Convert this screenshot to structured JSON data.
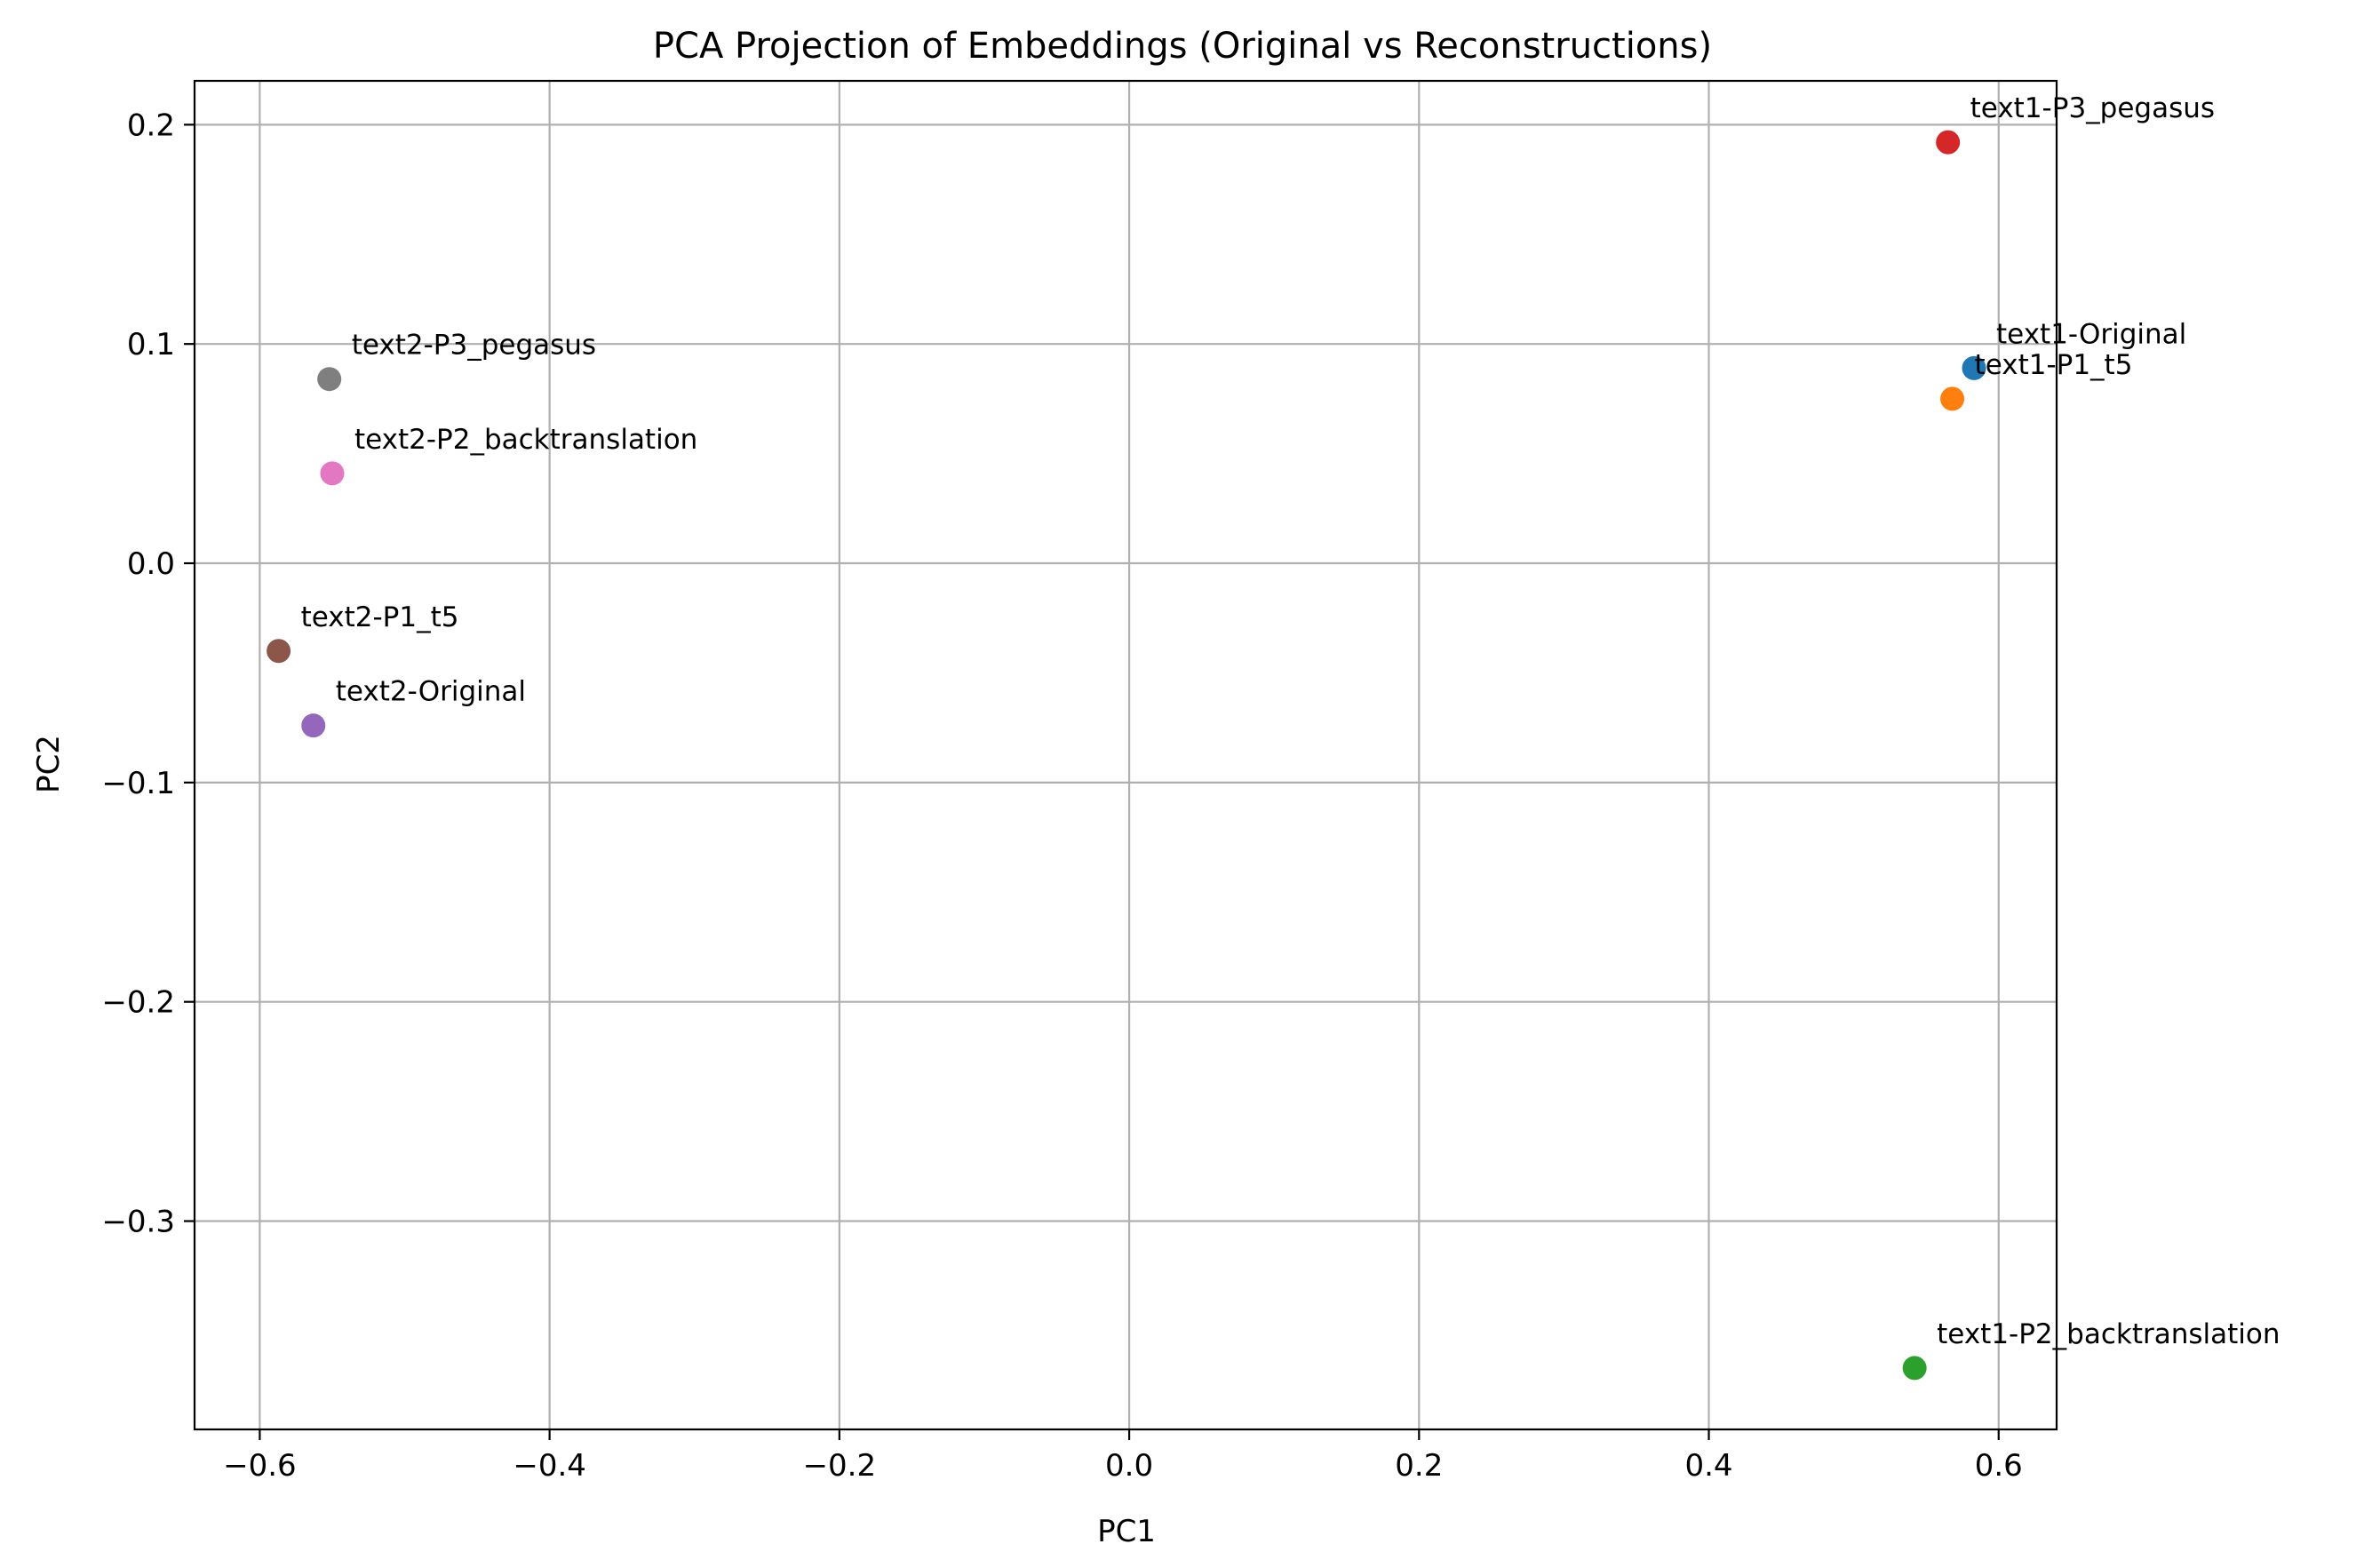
{
  "chart_data": {
    "type": "scatter",
    "title": "PCA Projection of Embeddings (Original vs Reconstructions)",
    "xlabel": "PC1",
    "ylabel": "PC2",
    "xlim": [
      -0.645,
      0.64
    ],
    "ylim": [
      -0.395,
      0.22
    ],
    "xticks": [
      -0.6,
      -0.4,
      -0.2,
      0.0,
      0.2,
      0.4,
      0.6
    ],
    "xtick_labels": [
      "−0.6",
      "−0.4",
      "−0.2",
      "0.0",
      "0.2",
      "0.4",
      "0.6"
    ],
    "yticks": [
      0.2,
      0.1,
      0.0,
      -0.1,
      -0.2,
      -0.3
    ],
    "ytick_labels": [
      "0.2",
      "0.1",
      "0.0",
      "−0.1",
      "−0.2",
      "−0.3"
    ],
    "grid": true,
    "points": [
      {
        "label": "text1-Original",
        "x": 0.583,
        "y": 0.089,
        "color": "#1f77b4"
      },
      {
        "label": "text1-P1_t5",
        "x": 0.568,
        "y": 0.075,
        "color": "#ff7f0e"
      },
      {
        "label": "text1-P2_backtranslation",
        "x": 0.542,
        "y": -0.367,
        "color": "#2ca02c"
      },
      {
        "label": "text1-P3_pegasus",
        "x": 0.565,
        "y": 0.192,
        "color": "#d62728"
      },
      {
        "label": "text2-Original",
        "x": -0.563,
        "y": -0.074,
        "color": "#9467bd"
      },
      {
        "label": "text2-P1_t5",
        "x": -0.587,
        "y": -0.04,
        "color": "#8c564b"
      },
      {
        "label": "text2-P2_backtranslation",
        "x": -0.55,
        "y": 0.041,
        "color": "#e377c2"
      },
      {
        "label": "text2-P3_pegasus",
        "x": -0.552,
        "y": 0.084,
        "color": "#7f7f7f"
      }
    ]
  }
}
